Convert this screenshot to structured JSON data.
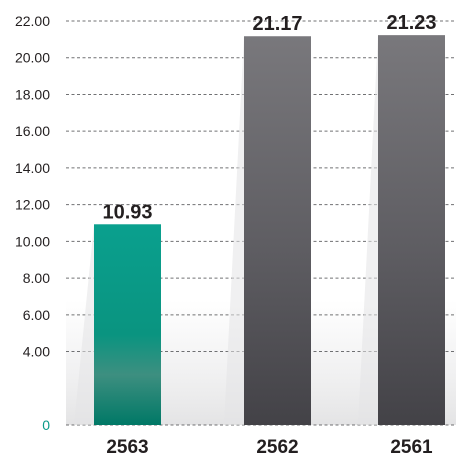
{
  "chart_data": {
    "type": "bar",
    "categories": [
      "2563",
      "2562",
      "2561"
    ],
    "values": [
      10.93,
      21.17,
      21.23
    ],
    "value_labels": [
      "10.93",
      "21.17",
      "21.23"
    ],
    "y_ticks": [
      {
        "value": 0,
        "label": "0"
      },
      {
        "value": 4,
        "label": "4.00"
      },
      {
        "value": 6,
        "label": "6.00"
      },
      {
        "value": 8,
        "label": "8.00"
      },
      {
        "value": 10,
        "label": "10.00"
      },
      {
        "value": 12,
        "label": "12.00"
      },
      {
        "value": 14,
        "label": "14.00"
      },
      {
        "value": 16,
        "label": "16.00"
      },
      {
        "value": 18,
        "label": "18.00"
      },
      {
        "value": 20,
        "label": "20.00"
      },
      {
        "value": 22,
        "label": "22.00"
      }
    ],
    "ylim": [
      0,
      22
    ],
    "grid": true,
    "grid_style": "dashed",
    "colors": {
      "highlight_bar": "#0a9a88",
      "bar": "#5a595d",
      "zero_label": "#0a9a88",
      "tick_label": "#231f20",
      "value_label": "#231f20",
      "grid": "#58595b"
    },
    "title": "",
    "xlabel": "",
    "ylabel": ""
  }
}
